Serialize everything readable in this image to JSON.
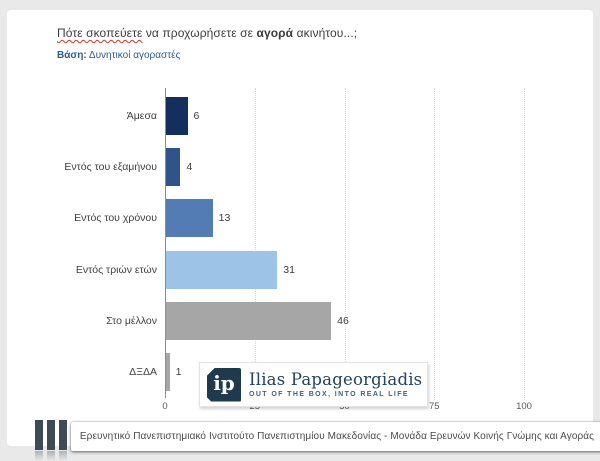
{
  "title": {
    "underlined": "Πότε σκοπεύετε",
    "mid": " να προχωρήσετε σε ",
    "bold": "αγορά",
    "suffix": " ακινήτου...;"
  },
  "subtitle": {
    "label": "Βάση:",
    "text": " Δυνητικοί αγοραστές"
  },
  "chart_data": {
    "type": "bar",
    "orientation": "horizontal",
    "categories": [
      "Άμεσα",
      "Εντός του εξαμήνου",
      "Εντός του χρόνου",
      "Εντός τριών ετών",
      "Στο μέλλον",
      "ΔΞΔΑ"
    ],
    "values": [
      6,
      4,
      13,
      31,
      46,
      1
    ],
    "bar_colors": [
      "#152f5c",
      "#2f5489",
      "#527cb3",
      "#9dc3e6",
      "#a6a6a6",
      "#a6a6a6"
    ],
    "data_labels": [
      6,
      4,
      13,
      31,
      46,
      1
    ],
    "xlim": [
      0,
      100
    ],
    "x_ticks": [
      0,
      25,
      50,
      75,
      100
    ],
    "grid": "vertical-dotted",
    "legend": "none",
    "title": "Πότε σκοπεύετε να προχωρήσετε σε αγορά ακινήτου...;",
    "subtitle": "Βάση: Δυνητικοί αγοραστές"
  },
  "logo": {
    "monogram": "ip",
    "name": "Ilias Papageorgiadis",
    "tagline": "OUT OF THE BOX, INTO REAL LIFE"
  },
  "footer": {
    "text": "Ερευνητικό Πανεπιστημιακό Ινστιτούτο Πανεπιστημίου Μακεδονίας - Μονάδα Ερευνών Κοινής Γνώμης και Αγοράς"
  },
  "colors": {
    "accent_navy": "#152f5c",
    "accent_blue": "#527cb3",
    "accent_light_blue": "#9dc3e6",
    "neutral_gray": "#a6a6a6",
    "subtitle_blue": "#2e5b8f",
    "logo_navy": "#1e3a4c",
    "footer_bar": "#3e4b54"
  }
}
